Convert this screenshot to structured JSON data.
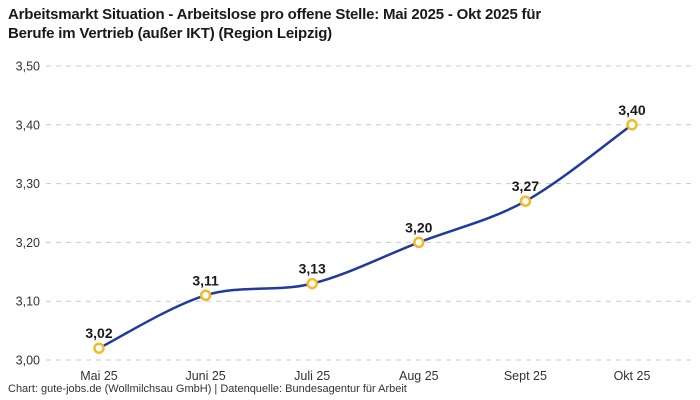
{
  "footer": {
    "text": "Chart: gute-jobs.de (Wollmilchsau GmbH) | Datenquelle: Bundesagentur für Arbeit"
  },
  "chart_data": {
    "type": "line",
    "title": "Arbeitsmarkt Situation - Arbeitslose pro offene Stelle: Mai 2025 - Okt 2025 für\nBerufe im Vertrieb (außer IKT) (Region Leipzig)",
    "categories": [
      "Mai 25",
      "Juni 25",
      "Juli 25",
      "Aug 25",
      "Sept 25",
      "Okt 25"
    ],
    "values": [
      3.02,
      3.11,
      3.13,
      3.2,
      3.27,
      3.4
    ],
    "value_labels": [
      "3,02",
      "3,11",
      "3,13",
      "3,20",
      "3,27",
      "3,40"
    ],
    "xlabel": "",
    "ylabel": "",
    "ylim": [
      3.0,
      3.5
    ],
    "yticks": [
      3.0,
      3.1,
      3.2,
      3.3,
      3.4,
      3.5
    ],
    "ytick_labels": [
      "3,00",
      "3,10",
      "3,20",
      "3,30",
      "3,40",
      "3,50"
    ],
    "grid": "horizontal dashed",
    "legend": "none",
    "colors": {
      "line": "#213a9f",
      "marker_ring": "#f3b929",
      "marker_fill": "#ffffff",
      "grid": "#c9c9c9",
      "title": "#1a1a1a",
      "tick": "#333333",
      "background": "#ffffff"
    }
  }
}
